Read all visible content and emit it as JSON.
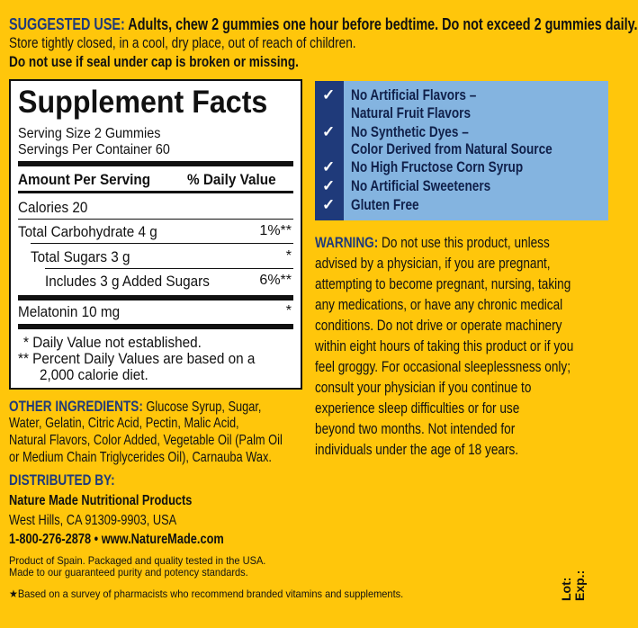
{
  "suggested_use": {
    "heading": "SUGGESTED USE:",
    "text": " Adults, chew 2 gummies one hour before bedtime. Do not exceed 2 gummies daily.",
    "storage": "Store tightly closed, in a cool, dry place, out of reach of children.",
    "seal": "Do not use if seal under cap is broken or missing."
  },
  "facts": {
    "title": "Supplement Facts",
    "serving_size": "Serving Size 2 Gummies",
    "servings": "Servings Per Container 60",
    "amount_header": "Amount Per Serving",
    "dv_header": "% Daily Value",
    "rows": [
      {
        "label": "Calories  20",
        "dv": ""
      },
      {
        "label": "Total Carbohydrate  4 g",
        "dv": "1%**"
      },
      {
        "label": "Total Sugars  3 g",
        "dv": "*"
      },
      {
        "label": "Includes  3 g Added Sugars",
        "dv": "6%**"
      },
      {
        "label": "Melatonin  10 mg",
        "dv": "*"
      }
    ],
    "foot1": "* Daily Value not established.",
    "foot2a": "** Percent Daily Values are based on a",
    "foot2b": "2,000 calorie diet."
  },
  "claims": [
    [
      "No Artificial Flavors –",
      "Natural Fruit Flavors"
    ],
    [
      "No Synthetic Dyes –",
      "Color Derived from Natural Source"
    ],
    [
      "No High Fructose Corn Syrup"
    ],
    [
      "No Artificial Sweeteners"
    ],
    [
      "Gluten Free"
    ]
  ],
  "check_icon": "✓",
  "warning": {
    "heading": "WARNING:",
    "lines": [
      " Do not use this product, unless",
      "advised by a physician, if you are pregnant,",
      "attempting to become pregnant, nursing, taking",
      "any medications, or have any chronic medical",
      "conditions. Do not drive or operate machinery",
      "within eight hours of taking this product or if you",
      "feel groggy. For occasional sleeplessness only;",
      "consult your physician if you continue to",
      "experience sleep difficulties or for use",
      "beyond two months. Not intended for",
      "individuals under the age of 18 years."
    ]
  },
  "ingredients": {
    "heading": "OTHER INGREDIENTS:",
    "lines": [
      " Glucose Syrup, Sugar,",
      "Water, Gelatin, Citric Acid, Pectin, Malic Acid,",
      "Natural Flavors, Color Added, Vegetable Oil (Palm Oil",
      "or Medium Chain Triglycerides Oil), Carnauba Wax."
    ]
  },
  "distributor": {
    "heading": "DISTRIBUTED BY:",
    "name": "Nature Made Nutritional Products",
    "address": "West Hills, CA 91309-9903, USA",
    "contact": "1-800-276-2878 • www.NatureMade.com"
  },
  "origin1": "Product of Spain. Packaged and quality tested in the USA.",
  "origin2": "Made to our guaranteed purity and potency standards.",
  "survey": "★Based on a survey of pharmacists who recommend branded vitamins and supplements.",
  "lot": "Lot:",
  "exp": "Exp.:",
  "colors": {
    "background": "#FFC60B",
    "navy": "#1f3a7a",
    "claims_blue": "#84b4e0"
  }
}
